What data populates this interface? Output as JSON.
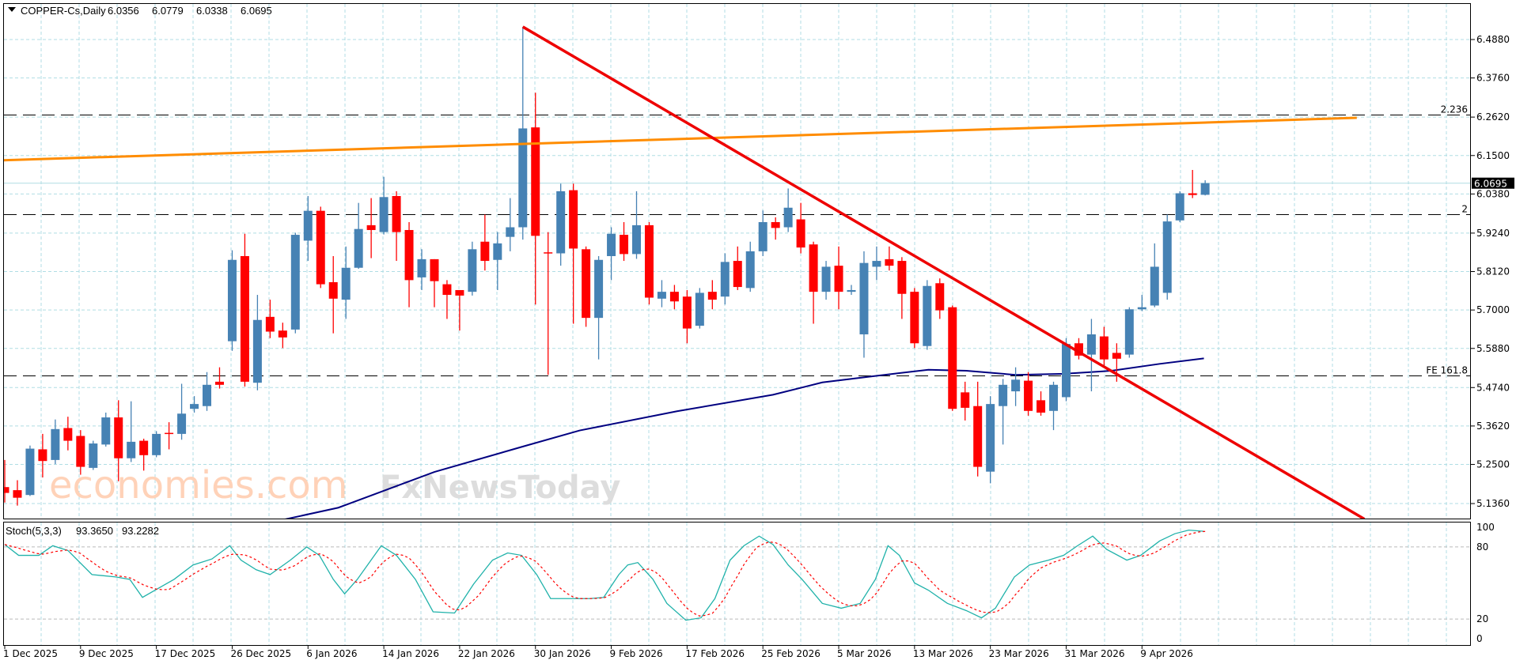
{
  "header": {
    "symbol": "COPPER-Cs,Daily",
    "open": "6.0356",
    "high": "6.0779",
    "low": "6.0338",
    "close": "6.0695"
  },
  "colors": {
    "bull": "#4682B4",
    "bear": "#FF0000",
    "grid": "#B0DDE4",
    "orange_line": "#FF8C00",
    "trend_line": "#EE0000",
    "ma_line": "#000080",
    "stoch_main": "#20B2AA",
    "stoch_signal": "#FF0000"
  },
  "price_axis": {
    "ticks": [
      "6.4880",
      "6.3760",
      "6.2620",
      "6.1500",
      "6.0380",
      "5.9240",
      "5.8120",
      "5.7000",
      "5.5880",
      "5.4740",
      "5.3620",
      "5.2500",
      "5.1360"
    ],
    "current_price": "6.0695"
  },
  "levels": [
    {
      "label": "2.236",
      "price": 6.268
    },
    {
      "label": "2",
      "price": 5.978
    },
    {
      "label": "FE 161.8",
      "price": 5.508
    }
  ],
  "date_axis": [
    "1 Dec 2025",
    "9 Dec 2025",
    "17 Dec 2025",
    "26 Dec 2025",
    "6 Jan 2026",
    "14 Jan 2026",
    "22 Jan 2026",
    "30 Jan 2026",
    "9 Feb 2026",
    "17 Feb 2026",
    "25 Feb 2026",
    "5 Mar 2026",
    "13 Mar 2026",
    "23 Mar 2026",
    "31 Mar 2026",
    "9 Apr 2026"
  ],
  "stoch": {
    "label": "Stoch(5,3,3)",
    "main_value": "93.3650",
    "signal_value": "93.2282",
    "ticks": [
      "100",
      "80",
      "20",
      "0"
    ]
  },
  "watermarks": {
    "top": "economies.com",
    "bottom": "FxNewsToday"
  },
  "chart_data": {
    "type": "candlestick",
    "title": "COPPER-Cs,Daily",
    "ylim": [
      5.088,
      6.55
    ],
    "ohlc": [
      [
        5.184,
        5.263,
        5.139,
        5.167
      ],
      [
        5.175,
        5.204,
        5.13,
        5.153
      ],
      [
        5.161,
        5.305,
        5.158,
        5.296
      ],
      [
        5.294,
        5.339,
        5.212,
        5.26
      ],
      [
        5.263,
        5.381,
        5.251,
        5.353
      ],
      [
        5.356,
        5.389,
        5.291,
        5.319
      ],
      [
        5.333,
        5.35,
        5.22,
        5.243
      ],
      [
        5.24,
        5.319,
        5.234,
        5.311
      ],
      [
        5.308,
        5.401,
        5.302,
        5.387
      ],
      [
        5.387,
        5.437,
        5.201,
        5.268
      ],
      [
        5.268,
        5.434,
        5.257,
        5.316
      ],
      [
        5.319,
        5.325,
        5.232,
        5.277
      ],
      [
        5.277,
        5.347,
        5.271,
        5.339
      ],
      [
        5.342,
        5.373,
        5.294,
        5.339
      ],
      [
        5.339,
        5.485,
        5.322,
        5.398
      ],
      [
        5.412,
        5.449,
        5.401,
        5.426
      ],
      [
        5.42,
        5.519,
        5.406,
        5.482
      ],
      [
        5.491,
        5.533,
        5.471,
        5.482
      ],
      [
        5.609,
        5.874,
        5.581,
        5.846
      ],
      [
        5.857,
        5.922,
        5.477,
        5.491
      ],
      [
        5.488,
        5.744,
        5.466,
        5.671
      ],
      [
        5.68,
        5.73,
        5.618,
        5.637
      ],
      [
        5.64,
        5.663,
        5.589,
        5.62
      ],
      [
        5.643,
        5.925,
        5.632,
        5.919
      ],
      [
        5.902,
        6.032,
        5.843,
        5.989
      ],
      [
        5.989,
        6.001,
        5.764,
        5.775
      ],
      [
        5.781,
        5.857,
        5.632,
        5.733
      ],
      [
        5.73,
        5.885,
        5.674,
        5.823
      ],
      [
        5.823,
        6.012,
        5.82,
        5.936
      ],
      [
        5.947,
        6.026,
        5.851,
        5.933
      ],
      [
        5.927,
        6.088,
        5.92,
        6.029
      ],
      [
        6.032,
        6.046,
        5.843,
        5.927
      ],
      [
        5.933,
        5.956,
        5.708,
        5.787
      ],
      [
        5.795,
        5.877,
        5.758,
        5.848
      ],
      [
        5.848,
        5.848,
        5.708,
        5.784
      ],
      [
        5.775,
        5.787,
        5.674,
        5.744
      ],
      [
        5.758,
        5.758,
        5.64,
        5.742
      ],
      [
        5.753,
        5.899,
        5.742,
        5.877
      ],
      [
        5.899,
        5.978,
        5.815,
        5.843
      ],
      [
        5.846,
        5.927,
        5.758,
        5.894
      ],
      [
        5.913,
        6.026,
        5.871,
        5.941
      ],
      [
        5.941,
        6.525,
        5.905,
        6.229
      ],
      [
        6.232,
        6.333,
        5.716,
        5.916
      ],
      [
        5.868,
        5.927,
        5.511,
        5.865
      ],
      [
        5.865,
        6.068,
        5.829,
        6.046
      ],
      [
        6.049,
        6.068,
        5.66,
        5.879
      ],
      [
        5.877,
        5.885,
        5.651,
        5.677
      ],
      [
        5.677,
        5.857,
        5.556,
        5.846
      ],
      [
        5.857,
        5.941,
        5.787,
        5.922
      ],
      [
        5.919,
        5.956,
        5.843,
        5.863
      ],
      [
        5.863,
        6.046,
        5.849,
        5.947
      ],
      [
        5.947,
        5.956,
        5.716,
        5.736
      ],
      [
        5.733,
        5.787,
        5.708,
        5.753
      ],
      [
        5.753,
        5.773,
        5.702,
        5.725
      ],
      [
        5.739,
        5.758,
        5.603,
        5.646
      ],
      [
        5.654,
        5.764,
        5.646,
        5.75
      ],
      [
        5.753,
        5.787,
        5.702,
        5.73
      ],
      [
        5.739,
        5.865,
        5.716,
        5.84
      ],
      [
        5.843,
        5.885,
        5.758,
        5.767
      ],
      [
        5.764,
        5.899,
        5.753,
        5.871
      ],
      [
        5.871,
        5.99,
        5.857,
        5.956
      ],
      [
        5.956,
        5.97,
        5.905,
        5.939
      ],
      [
        5.941,
        6.054,
        5.927,
        5.998
      ],
      [
        5.964,
        6.012,
        5.865,
        5.882
      ],
      [
        5.891,
        5.899,
        5.66,
        5.753
      ],
      [
        5.753,
        5.843,
        5.73,
        5.826
      ],
      [
        5.829,
        5.885,
        5.702,
        5.753
      ],
      [
        5.753,
        5.773,
        5.744,
        5.758
      ],
      [
        5.629,
        5.871,
        5.561,
        5.837
      ],
      [
        5.826,
        5.885,
        5.787,
        5.843
      ],
      [
        5.848,
        5.885,
        5.815,
        5.829
      ],
      [
        5.843,
        5.854,
        5.674,
        5.747
      ],
      [
        5.753,
        5.764,
        5.589,
        5.603
      ],
      [
        5.595,
        5.787,
        5.584,
        5.77
      ],
      [
        5.778,
        5.792,
        5.674,
        5.699
      ],
      [
        5.708,
        5.713,
        5.406,
        5.412
      ],
      [
        5.46,
        5.491,
        5.378,
        5.415
      ],
      [
        5.42,
        5.491,
        5.215,
        5.243
      ],
      [
        5.229,
        5.449,
        5.195,
        5.426
      ],
      [
        5.42,
        5.499,
        5.308,
        5.482
      ],
      [
        5.463,
        5.533,
        5.42,
        5.497
      ],
      [
        5.494,
        5.519,
        5.392,
        5.406
      ],
      [
        5.437,
        5.463,
        5.392,
        5.401
      ],
      [
        5.406,
        5.491,
        5.35,
        5.482
      ],
      [
        5.446,
        5.618,
        5.434,
        5.601
      ],
      [
        5.603,
        5.618,
        5.556,
        5.567
      ],
      [
        5.57,
        5.674,
        5.463,
        5.629
      ],
      [
        5.623,
        5.651,
        5.533,
        5.556
      ],
      [
        5.575,
        5.603,
        5.491,
        5.558
      ],
      [
        5.57,
        5.708,
        5.561,
        5.702
      ],
      [
        5.702,
        5.744,
        5.697,
        5.708
      ],
      [
        5.713,
        5.894,
        5.708,
        5.826
      ],
      [
        5.75,
        5.978,
        5.73,
        5.958
      ],
      [
        5.961,
        6.046,
        5.956,
        6.04
      ],
      [
        6.04,
        6.108,
        6.026,
        6.035
      ],
      [
        6.0356,
        6.0779,
        6.0338,
        6.0695
      ]
    ],
    "orange_trendline": [
      [
        -0.4,
        6.136
      ],
      [
        107,
        6.26
      ]
    ],
    "red_trendline": [
      [
        41,
        6.525
      ],
      [
        107.6,
        5.091
      ]
    ],
    "moving_average": [
      [
        21.8,
        5.087
      ],
      [
        26.4,
        5.124
      ],
      [
        34,
        5.228
      ],
      [
        40.9,
        5.301
      ],
      [
        45.5,
        5.349
      ],
      [
        53.2,
        5.405
      ],
      [
        60.8,
        5.453
      ],
      [
        64.7,
        5.489
      ],
      [
        68.5,
        5.506
      ],
      [
        73.1,
        5.526
      ],
      [
        76.1,
        5.523
      ],
      [
        80,
        5.511
      ],
      [
        83.8,
        5.514
      ],
      [
        87.6,
        5.523
      ],
      [
        91.4,
        5.543
      ],
      [
        94.9,
        5.559
      ]
    ],
    "stoch_main": [
      [
        0,
        82
      ],
      [
        1.1,
        73
      ],
      [
        2.7,
        73
      ],
      [
        3.8,
        81
      ],
      [
        5,
        77
      ],
      [
        6.9,
        57
      ],
      [
        8.8,
        55
      ],
      [
        9.9,
        53
      ],
      [
        10.9,
        38
      ],
      [
        11.9,
        44
      ],
      [
        13.4,
        53
      ],
      [
        14.9,
        65
      ],
      [
        16.4,
        70
      ],
      [
        17.8,
        81
      ],
      [
        18.7,
        69
      ],
      [
        19.9,
        61
      ],
      [
        21,
        57
      ],
      [
        22.6,
        69
      ],
      [
        23.9,
        80
      ],
      [
        24.9,
        73
      ],
      [
        26,
        53
      ],
      [
        26.9,
        41
      ],
      [
        27.9,
        53
      ],
      [
        29.8,
        81
      ],
      [
        31,
        73
      ],
      [
        32.5,
        53
      ],
      [
        33.9,
        26
      ],
      [
        35.6,
        25
      ],
      [
        37.1,
        49
      ],
      [
        38.6,
        69
      ],
      [
        39.8,
        75
      ],
      [
        40.9,
        73
      ],
      [
        42.1,
        57
      ],
      [
        43.2,
        37
      ],
      [
        44.8,
        37
      ],
      [
        46.3,
        37
      ],
      [
        47.4,
        38
      ],
      [
        48.6,
        57
      ],
      [
        49.3,
        65
      ],
      [
        50.1,
        67
      ],
      [
        51.3,
        53
      ],
      [
        52.4,
        33
      ],
      [
        53.9,
        19
      ],
      [
        55.1,
        21
      ],
      [
        56.2,
        37
      ],
      [
        57.4,
        69
      ],
      [
        58.5,
        81
      ],
      [
        59.7,
        89
      ],
      [
        60.8,
        82
      ],
      [
        62,
        65
      ],
      [
        63.1,
        53
      ],
      [
        64.7,
        33
      ],
      [
        66.2,
        29
      ],
      [
        67.7,
        33
      ],
      [
        68.9,
        53
      ],
      [
        69.9,
        81
      ],
      [
        70.8,
        73
      ],
      [
        72,
        50
      ],
      [
        73.1,
        44
      ],
      [
        74.6,
        33
      ],
      [
        76.1,
        27
      ],
      [
        77.3,
        21
      ],
      [
        78.4,
        29
      ],
      [
        79.9,
        55
      ],
      [
        81.1,
        65
      ],
      [
        82.6,
        69
      ],
      [
        83.8,
        73
      ],
      [
        84.9,
        81
      ],
      [
        86.1,
        89
      ],
      [
        87.2,
        78
      ],
      [
        88.8,
        69
      ],
      [
        89.9,
        73
      ],
      [
        91.4,
        85
      ],
      [
        92.6,
        91
      ],
      [
        93.7,
        94
      ],
      [
        94.9,
        93
      ]
    ]
  }
}
